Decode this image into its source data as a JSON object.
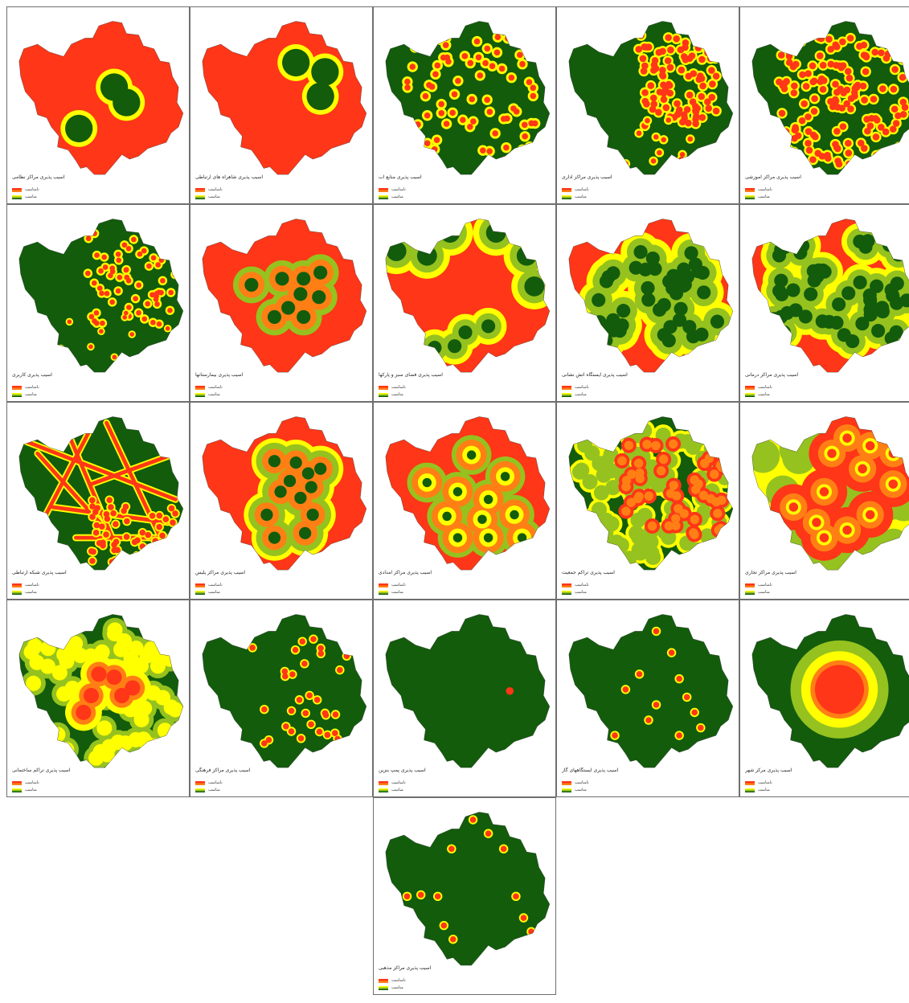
{
  "colors": {
    "red": "#ff3617",
    "orange": "#ff7f15",
    "yellow": "#ffff00",
    "lightgreen": "#95c21f",
    "green": "#125c0c"
  },
  "legend": {
    "top_label": "نامناسب",
    "bottom_label": "مناسب"
  },
  "panels": [
    {
      "caption": "آسیب پذیری مراکز نظامی",
      "bg": "red"
    },
    {
      "caption": "آسیب پذیری شاهراه های ارتباطی",
      "bg": "red"
    },
    {
      "caption": "آسیب پذیری منابع آب",
      "bg": "green"
    },
    {
      "caption": "آسیب پذیری مراکز اداری",
      "bg": "green"
    },
    {
      "caption": "آسیب پذیری مراکز آموزشی",
      "bg": "green"
    },
    {
      "caption": "آسیب پذیری کاربری",
      "bg": "green"
    },
    {
      "caption": "آسیب پذیری بیمارستانها",
      "bg": "red"
    },
    {
      "caption": "آسیب پذیری فضای سبز و پارکها",
      "bg": "red"
    },
    {
      "caption": "آسیب پذیری ایستگاه آتش نشانی",
      "bg": "red"
    },
    {
      "caption": "آسیب پذیری مراکز درمانی",
      "bg": "red"
    },
    {
      "caption": "آسیب پذیری شبکه ارتباطی",
      "bg": "green"
    },
    {
      "caption": "آسیب پذیری مراکز پلیس",
      "bg": "red"
    },
    {
      "caption": "آسیب پذیری مراکز امدادی",
      "bg": "red"
    },
    {
      "caption": "آسیب پذیری تراکم جمعیت",
      "bg": "green"
    },
    {
      "caption": "آسیب پذیری مراکز تجاری",
      "bg": "yellow"
    },
    {
      "caption": "آسیب پذیری تراکم ساختمانی",
      "bg": "green"
    },
    {
      "caption": "آسیب پذیری مراکز فرهنگی",
      "bg": "green"
    },
    {
      "caption": "آسیب پذیری پمپ بنزین",
      "bg": "green"
    },
    {
      "caption": "آسیب پذیری ایستگاههای گاز",
      "bg": "green"
    },
    {
      "caption": "آسیب پذیری مرکز شهر",
      "bg": "green"
    },
    {
      "caption": "آسیب پذیری مراکز مذهبی",
      "bg": "green"
    }
  ]
}
